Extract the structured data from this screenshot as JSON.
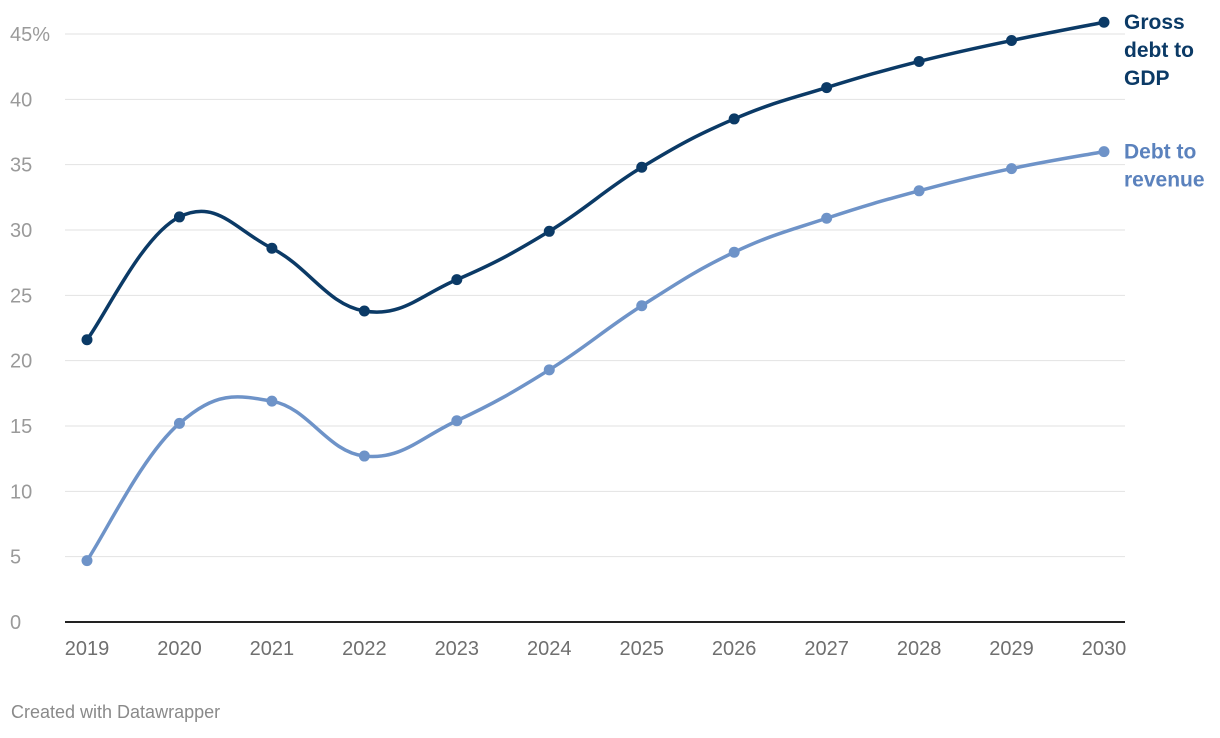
{
  "chart_data": {
    "type": "line",
    "categories": [
      "2019",
      "2020",
      "2021",
      "2022",
      "2023",
      "2024",
      "2025",
      "2026",
      "2027",
      "2028",
      "2029",
      "2030"
    ],
    "yticks": [
      0,
      5,
      10,
      15,
      20,
      25,
      30,
      35,
      40,
      45
    ],
    "ytick_labels": [
      "0",
      "5",
      "10",
      "15",
      "20",
      "25",
      "30",
      "35",
      "40",
      "45%"
    ],
    "ylim": [
      0,
      47
    ],
    "grid": true,
    "series": [
      {
        "name": "Gross debt to GDP",
        "label_lines": [
          "Gross",
          "debt to",
          "GDP"
        ],
        "color": "#0b3a66",
        "values": [
          21.6,
          31.0,
          28.6,
          23.8,
          26.2,
          29.9,
          34.8,
          38.5,
          40.9,
          42.9,
          44.5,
          45.9
        ]
      },
      {
        "name": "Debt to revenue",
        "label_lines": [
          "Debt to",
          "revenue"
        ],
        "color": "#6e93c8",
        "label_color": "#5b82bd",
        "values": [
          4.7,
          15.2,
          16.9,
          12.7,
          15.4,
          19.3,
          24.2,
          28.3,
          30.9,
          33.0,
          34.7,
          36.0
        ]
      }
    ]
  },
  "footer": {
    "credit": "Created with Datawrapper"
  }
}
